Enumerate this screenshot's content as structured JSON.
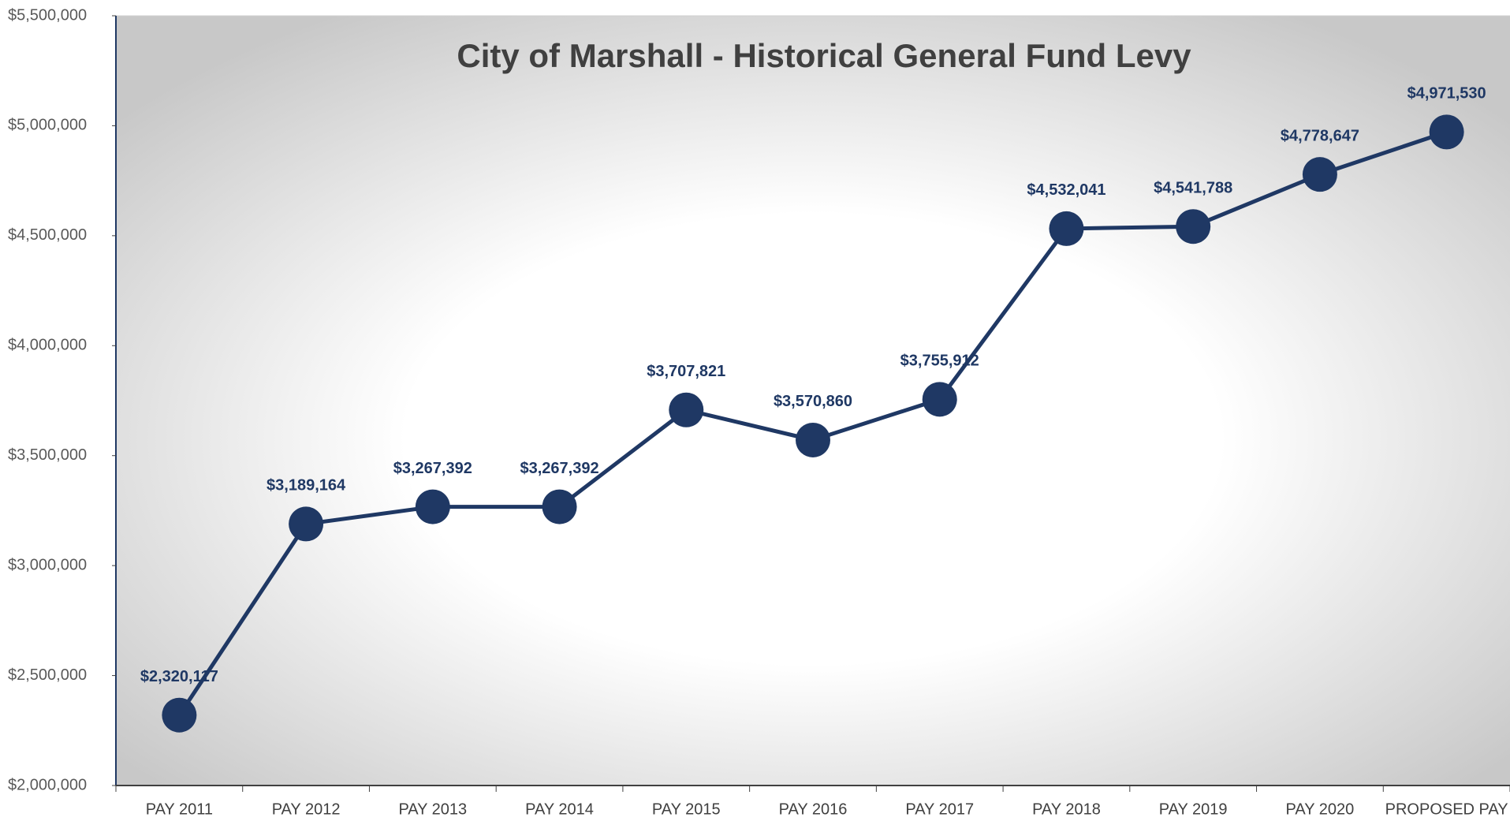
{
  "chart_data": {
    "type": "line",
    "title": "City of Marshall - Historical General Fund Levy",
    "categories": [
      "PAY 2011",
      "PAY 2012",
      "PAY 2013",
      "PAY 2014",
      "PAY 2015",
      "PAY 2016",
      "PAY 2017",
      "PAY 2018",
      "PAY 2019",
      "PAY 2020",
      "PROPOSED PAY"
    ],
    "series": [
      {
        "name": "General Fund Levy",
        "color": "#1f3864",
        "values": [
          2320117,
          3189164,
          3267392,
          3267392,
          3707821,
          3570860,
          3755912,
          4532041,
          4541788,
          4778647,
          4971530
        ],
        "value_labels": [
          "$2,320,117",
          "$3,189,164",
          "$3,267,392",
          "$3,267,392",
          "$3,707,821",
          "$3,570,860",
          "$3,755,912",
          "$4,532,041",
          "$4,541,788",
          "$4,778,647",
          "$4,971,530"
        ]
      }
    ],
    "ylim": [
      2000000,
      5500000
    ],
    "yticks": [
      {
        "value": 2000000,
        "label": "$2,000,000"
      },
      {
        "value": 2500000,
        "label": "$2,500,000"
      },
      {
        "value": 3000000,
        "label": "$3,000,000"
      },
      {
        "value": 3500000,
        "label": "$3,500,000"
      },
      {
        "value": 4000000,
        "label": "$4,000,000"
      },
      {
        "value": 4500000,
        "label": "$4,500,000"
      },
      {
        "value": 5000000,
        "label": "$5,000,000"
      },
      {
        "value": 5500000,
        "label": "$5,500,000"
      }
    ],
    "grid": false,
    "legend": false
  }
}
